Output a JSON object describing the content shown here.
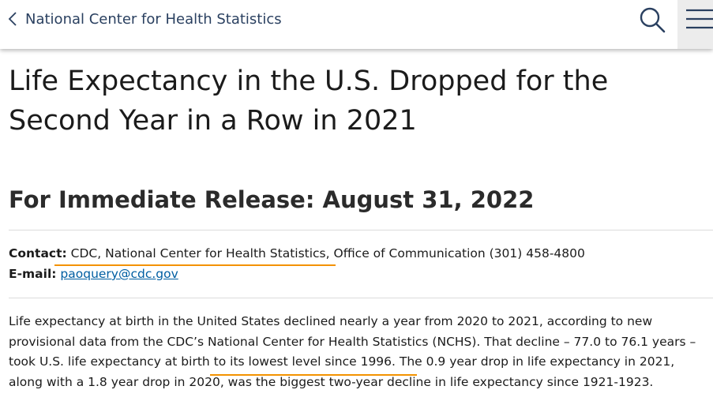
{
  "header": {
    "back_label": "National Center for Health Statistics",
    "search_icon": "search-icon",
    "menu_icon": "hamburger-menu-icon"
  },
  "article": {
    "title": "Life Expectancy in the U.S. Dropped for the Second Year in a Row in 2021",
    "release": "For Immediate Release: August 31, 2022",
    "contact_label": "Contact:",
    "contact_value": "CDC, National Center for Health Statistics, Office of Communication (301) 458-4800",
    "email_label": "E-mail:",
    "email_value": "paoquery@cdc.gov",
    "paragraph": "Life expectancy at birth in the United States declined nearly a year from 2020 to 2021, according to new provisional data from the CDC’s National Center for Health Statistics (NCHS). That decline – 77.0 to 76.1 years – took U.S. life expectancy at birth to its lowest level since 1996. The 0.9 year drop in life expectancy in 2021, along with a 1.8 year drop in 2020, was the biggest two-year decline in life expectancy since 1921-1923."
  },
  "colors": {
    "link": "#005ea2",
    "highlight": "#f39200",
    "header_text": "#2a4060"
  }
}
